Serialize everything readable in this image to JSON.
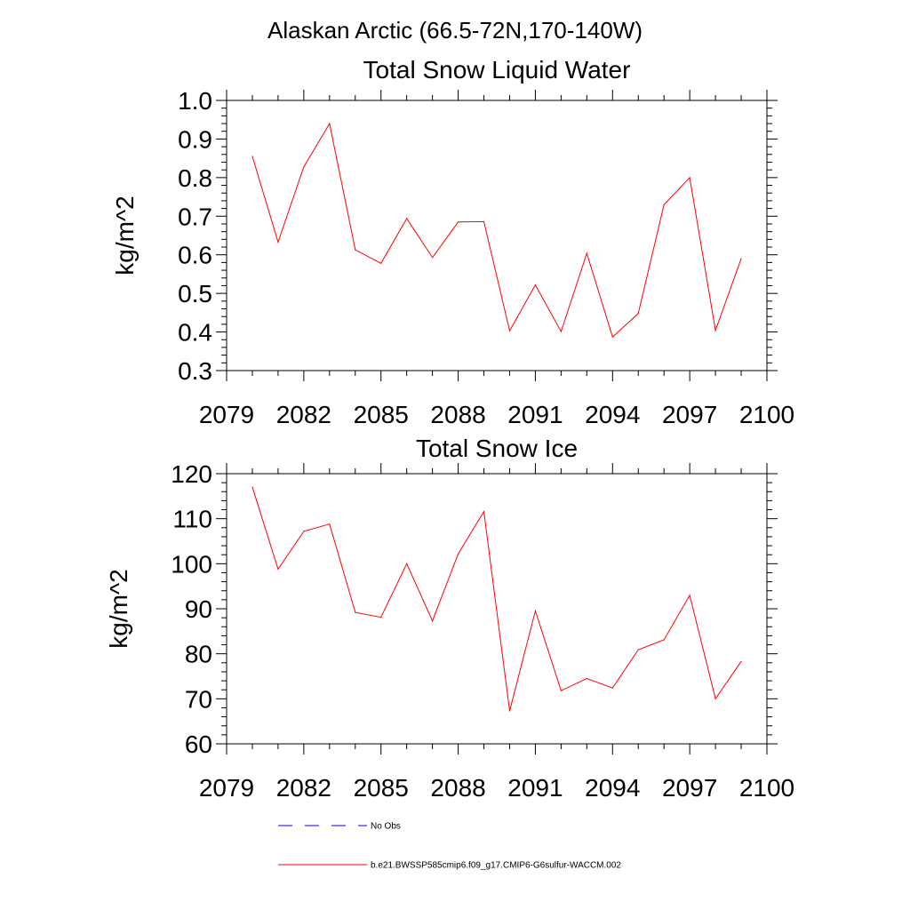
{
  "figure": {
    "title": "Alaskan Arctic (66.5-72N,170-140W)"
  },
  "chart_data": [
    {
      "type": "line",
      "title": "Total Snow Liquid Water",
      "xlabel": "",
      "ylabel": "kg/m^2",
      "xlim": [
        2079,
        2100
      ],
      "ylim": [
        0.3,
        1.0
      ],
      "xticks": [
        "2079",
        "2082",
        "2085",
        "2088",
        "2091",
        "2094",
        "2097",
        "2100"
      ],
      "yticks": [
        "0.3",
        "0.4",
        "0.5",
        "0.6",
        "0.7",
        "0.8",
        "0.9",
        "1.0"
      ],
      "grid": false,
      "x": [
        2080,
        2081,
        2082,
        2083,
        2084,
        2085,
        2086,
        2087,
        2088,
        2089,
        2090,
        2091,
        2092,
        2093,
        2094,
        2095,
        2096,
        2097,
        2098,
        2099
      ],
      "series": [
        {
          "color": "#ff0000",
          "values": [
            0.855,
            0.633,
            0.828,
            0.94,
            0.613,
            0.578,
            0.694,
            0.593,
            0.685,
            0.686,
            0.403,
            0.522,
            0.401,
            0.604,
            0.387,
            0.448,
            0.73,
            0.8,
            0.404,
            0.59
          ]
        }
      ]
    },
    {
      "type": "line",
      "title": "Total Snow Ice",
      "xlabel": "",
      "ylabel": "kg/m^2",
      "xlim": [
        2079,
        2100
      ],
      "ylim": [
        60,
        120
      ],
      "xticks": [
        "2079",
        "2082",
        "2085",
        "2088",
        "2091",
        "2094",
        "2097",
        "2100"
      ],
      "yticks": [
        "60",
        "70",
        "80",
        "90",
        "100",
        "110",
        "120"
      ],
      "grid": false,
      "x": [
        2080,
        2081,
        2082,
        2083,
        2084,
        2085,
        2086,
        2087,
        2088,
        2089,
        2090,
        2091,
        2092,
        2093,
        2094,
        2095,
        2096,
        2097,
        2098,
        2099
      ],
      "series": [
        {
          "color": "#ff0000",
          "values": [
            117.0,
            98.8,
            107.2,
            108.8,
            89.2,
            88.1,
            100.0,
            87.3,
            102.2,
            111.6,
            67.3,
            89.5,
            71.8,
            74.5,
            72.4,
            80.9,
            83.1,
            93.0,
            70.0,
            78.3
          ]
        }
      ]
    }
  ],
  "legend": {
    "placement": "bottom-center",
    "entries": [
      {
        "label": "No Obs",
        "color": "#0000ff",
        "style": "dashed"
      },
      {
        "label": "b.e21.BWSSP585cmip6.f09_g17.CMIP6-G6sulfur-WACCM.002",
        "color": "#ff0000",
        "style": "solid"
      }
    ]
  }
}
